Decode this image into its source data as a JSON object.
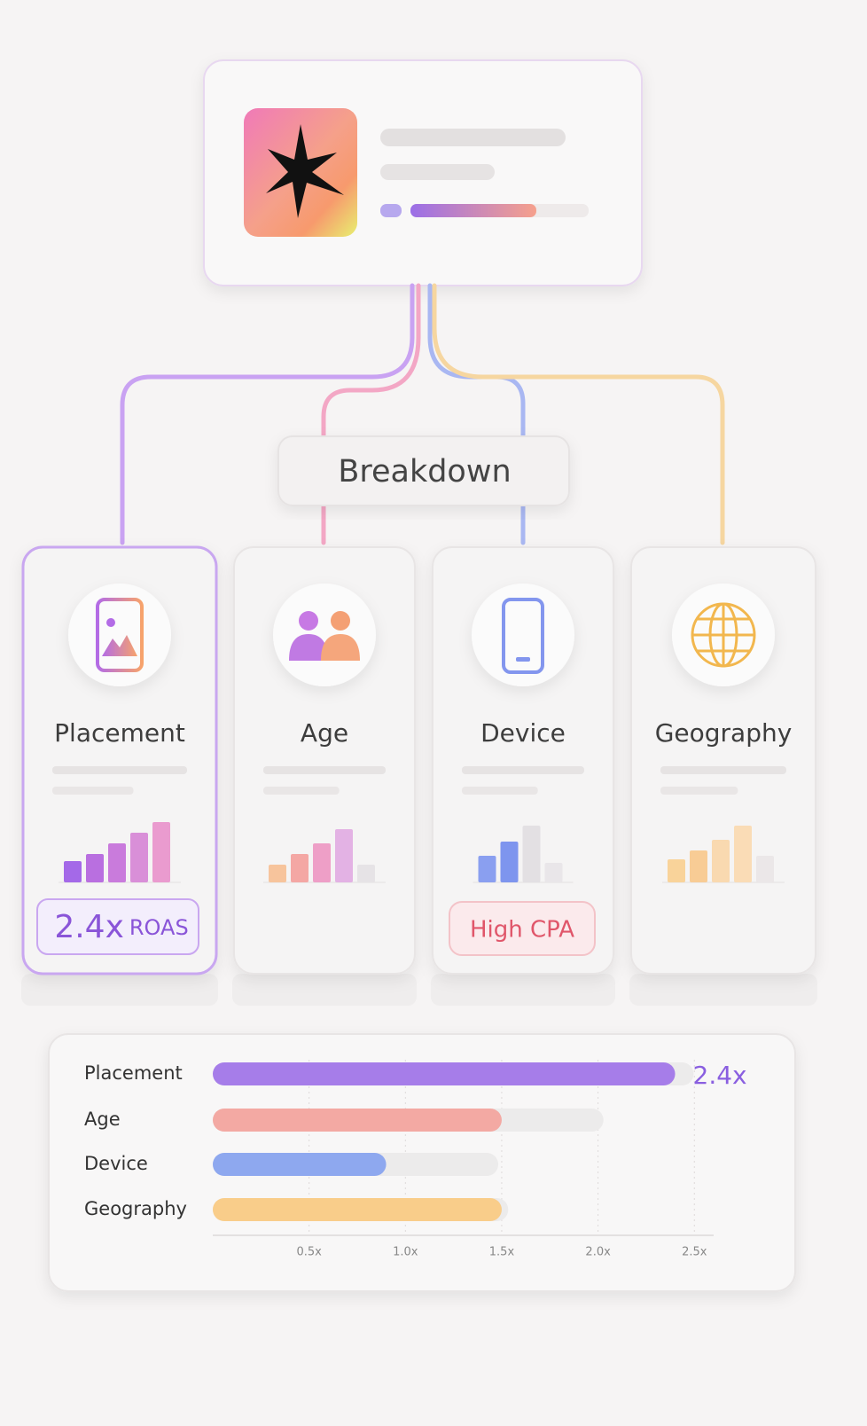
{
  "title": "Breakdown",
  "cards": [
    {
      "label": "Placement",
      "bars": [
        24,
        32,
        44,
        56,
        68
      ],
      "colors": [
        "#a469e8",
        "#b96fe0",
        "#c97bdc",
        "#d98fd8",
        "#ea9bcf"
      ],
      "badge": {
        "value": "2.4x",
        "unit": "ROAS"
      }
    },
    {
      "label": "Age",
      "bars": [
        20,
        32,
        44,
        60,
        20
      ],
      "colors": [
        "#f7c49c",
        "#f4a7a4",
        "#ee9fc7",
        "#e3b2e4",
        "#e6e3e6"
      ]
    },
    {
      "label": "Device",
      "bars": [
        30,
        46,
        64,
        22
      ],
      "colors": [
        "#8a9ff0",
        "#7e95ee",
        "#e3e0e3",
        "#e9e6e9"
      ],
      "badge": {
        "text": "High CPA"
      }
    },
    {
      "label": "Geography",
      "bars": [
        26,
        36,
        48,
        64,
        30
      ],
      "colors": [
        "#f9d39a",
        "#f8cc95",
        "#f9d9b0",
        "#fadcb6",
        "#ebe7e8"
      ]
    }
  ],
  "chart_data": {
    "type": "bar",
    "orientation": "horizontal",
    "categories": [
      "Placement",
      "Age",
      "Device",
      "Geography"
    ],
    "values": [
      2.4,
      1.5,
      0.9,
      1.5
    ],
    "value_labels": [
      "2.4x",
      null,
      null,
      null
    ],
    "colors": [
      "#a67de9",
      "#f3a9a3",
      "#8ea8ef",
      "#f9cd8a"
    ],
    "xlim": [
      0,
      2.6
    ],
    "xticks": [
      {
        "value": 0.5,
        "label": "0.5x"
      },
      {
        "value": 1.0,
        "label": "1.0x"
      },
      {
        "value": 1.5,
        "label": "1.5x"
      },
      {
        "value": 2.0,
        "label": "2.0x"
      },
      {
        "value": 2.5,
        "label": "2.5x"
      }
    ]
  }
}
